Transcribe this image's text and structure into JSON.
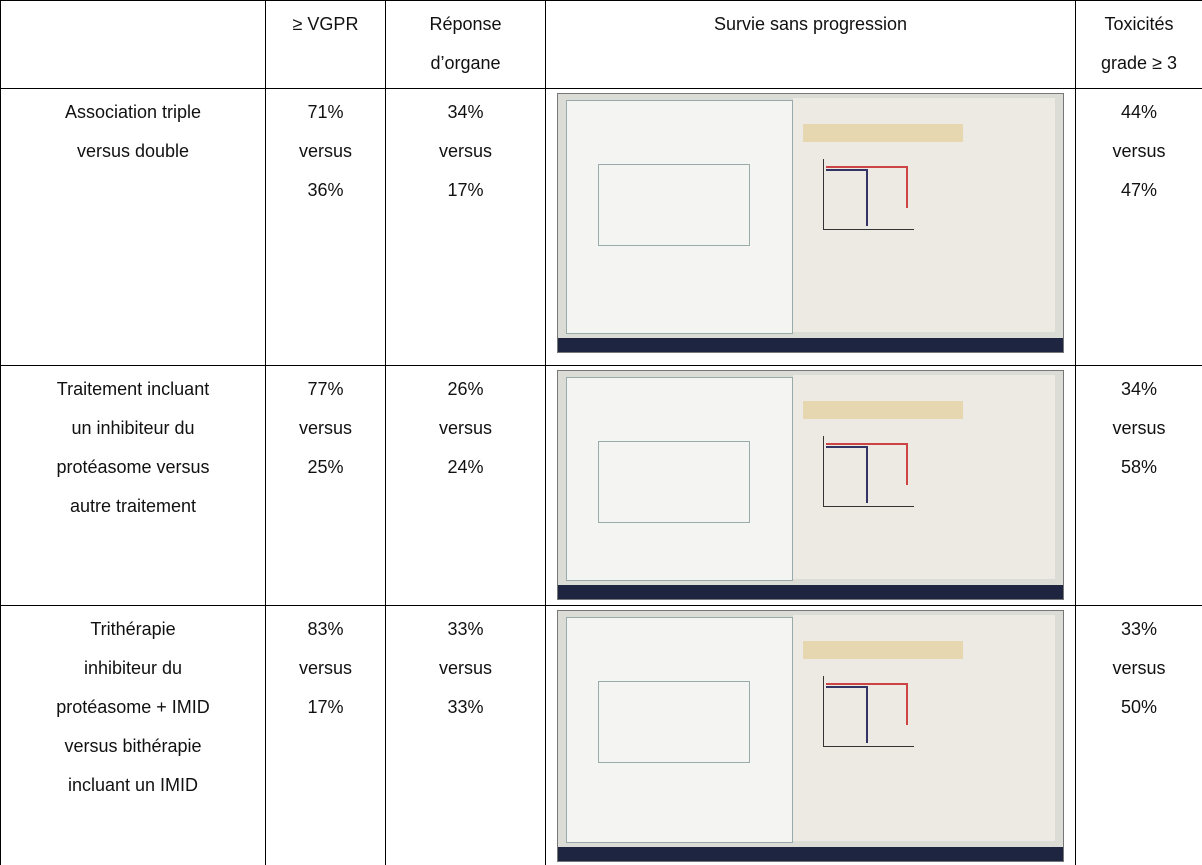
{
  "table": {
    "header": [
      [
        "≥ VGPR"
      ],
      [
        "Réponse",
        "d’organe"
      ],
      [
        "Survie sans progression"
      ],
      [
        "Toxicités",
        "grade ≥ 3"
      ]
    ],
    "rows": [
      {
        "label": [
          "Association triple",
          "versus double"
        ],
        "vgpr": [
          "71%",
          "versus",
          "36%"
        ],
        "organ": [
          "34%",
          "versus",
          "17%"
        ],
        "tox": [
          "44%",
          "versus",
          "47%"
        ]
      },
      {
        "label": [
          "Traitement incluant",
          "un inhibiteur du",
          "protéasome versus",
          "autre traitement"
        ],
        "vgpr": [
          "77%",
          "versus",
          "25%"
        ],
        "organ": [
          "26%",
          "versus",
          "24%"
        ],
        "tox": [
          "34%",
          "versus",
          "58%"
        ]
      },
      {
        "label": [
          "Trithérapie",
          "inhibiteur du",
          "protéasome + IMID",
          "versus bithérapie",
          "incluant un IMID"
        ],
        "vgpr": [
          "83%",
          "versus",
          "17%"
        ],
        "organ": [
          "33%",
          "versus",
          "33%"
        ],
        "tox": [
          "33%",
          "versus",
          "50%"
        ]
      }
    ]
  }
}
